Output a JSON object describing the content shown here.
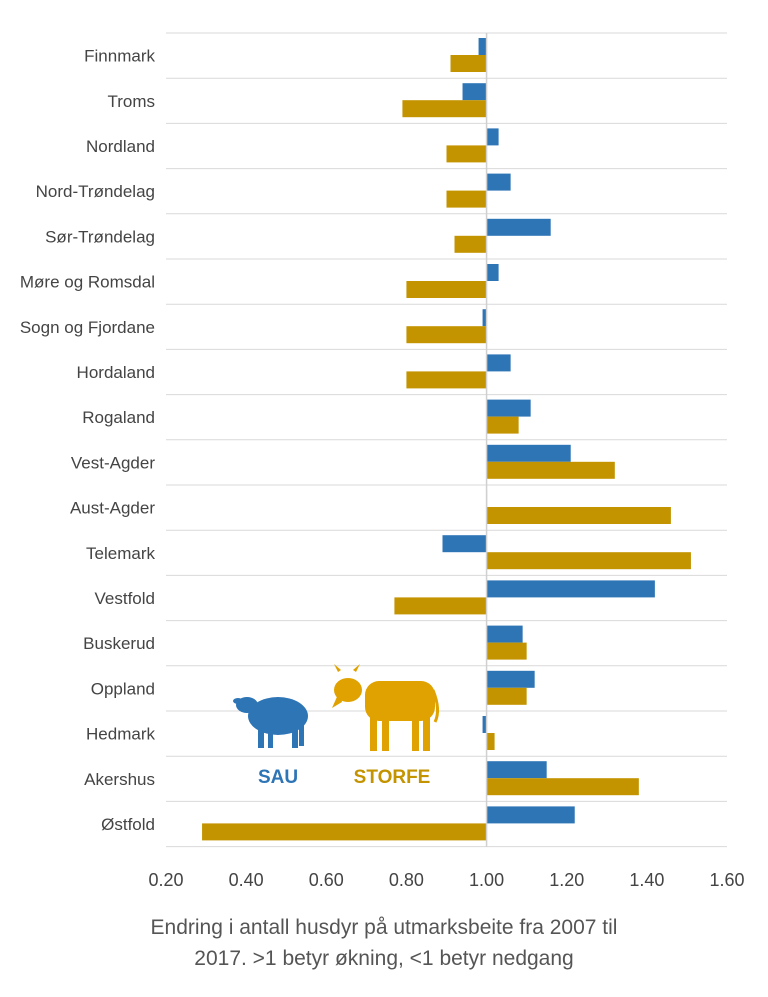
{
  "chart_data": {
    "type": "bar",
    "orientation": "horizontal",
    "categories": [
      "Finnmark",
      "Troms",
      "Nordland",
      "Nord-Trøndelag",
      "Sør-Trøndelag",
      "Møre og Romsdal",
      "Sogn og Fjordane",
      "Hordaland",
      "Rogaland",
      "Vest-Agder",
      "Aust-Agder",
      "Telemark",
      "Vestfold",
      "Buskerud",
      "Oppland",
      "Hedmark",
      "Akershus",
      "Østfold"
    ],
    "series": [
      {
        "name": "SAU",
        "color": "#2e75b6",
        "values": [
          0.98,
          0.94,
          1.03,
          1.06,
          1.16,
          1.03,
          0.99,
          1.06,
          1.11,
          1.21,
          1.0,
          0.89,
          1.42,
          1.09,
          1.12,
          0.99,
          1.15,
          1.22
        ]
      },
      {
        "name": "STORFE",
        "color": "#c39300",
        "values": [
          0.91,
          0.79,
          0.9,
          0.9,
          0.92,
          0.8,
          0.8,
          0.8,
          1.08,
          1.32,
          1.46,
          1.51,
          0.77,
          1.1,
          1.1,
          1.02,
          1.38,
          0.29
        ]
      }
    ],
    "x_axis": {
      "min": 0.2,
      "max": 1.6,
      "baseline": 1.0,
      "ticks": [
        "0.20",
        "0.40",
        "0.60",
        "0.80",
        "1.00",
        "1.20",
        "1.40",
        "1.60"
      ]
    },
    "xlabel_lines": [
      "Endring i antall husdyr på utmarksbeite fra 2007 til",
      "2017. >1 betyr økning, <1 betyr nedgang"
    ],
    "legend": {
      "placement": "inside-lower-left",
      "sheep_icon": "sheep-icon",
      "cow_icon": "cow-icon"
    },
    "grid": true
  }
}
